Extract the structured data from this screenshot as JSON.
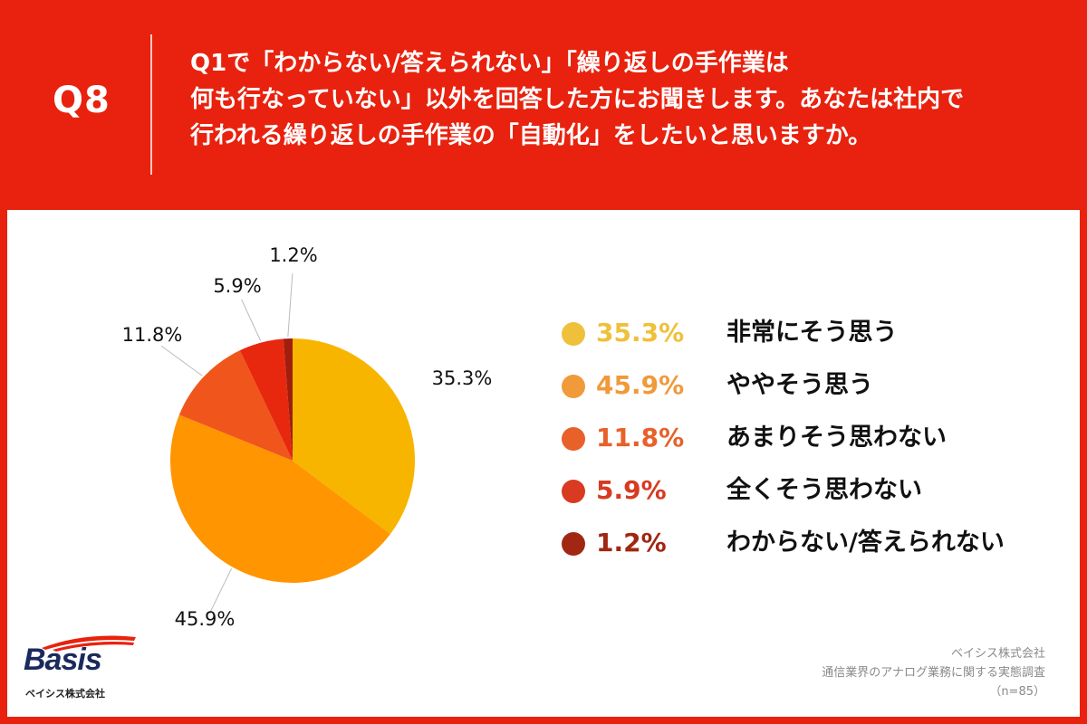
{
  "header": {
    "q_label": "Q8",
    "question_lines": [
      "Q1で「わからない/答えられない」「繰り返しの手作業は",
      "何も行なっていない」以外を回答した方にお聞きします。あなたは社内で",
      "行われる繰り返しの手作業の「自動化」をしたいと思いますか。"
    ]
  },
  "chart_data": {
    "type": "pie",
    "title": "",
    "slices": [
      {
        "label": "非常にそう思う",
        "value": 35.3,
        "value_text": "35.3%",
        "color": "#f7b500",
        "legend_color": "#efc03a"
      },
      {
        "label": "ややそう思う",
        "value": 45.9,
        "value_text": "45.9%",
        "color": "#ff9500",
        "legend_color": "#f09a3a"
      },
      {
        "label": "あまりそう思わない",
        "value": 11.8,
        "value_text": "11.8%",
        "color": "#f0561c",
        "legend_color": "#e8602a"
      },
      {
        "label": "全くそう思わない",
        "value": 5.9,
        "value_text": "5.9%",
        "color": "#e8280e",
        "legend_color": "#d83a22"
      },
      {
        "label": "わからない/答えられない",
        "value": 1.2,
        "value_text": "1.2%",
        "color": "#a01e0e",
        "legend_color": "#a12712"
      }
    ]
  },
  "footer": {
    "logo_text": "Basis",
    "logo_sub": "ベイシス株式会社",
    "source_lines": [
      "ベイシス株式会社",
      "通信業界のアナログ業務に関する実態調査",
      "（n=85）"
    ]
  },
  "colors": {
    "brand_red": "#e8220e",
    "panel": "#ffffff"
  }
}
